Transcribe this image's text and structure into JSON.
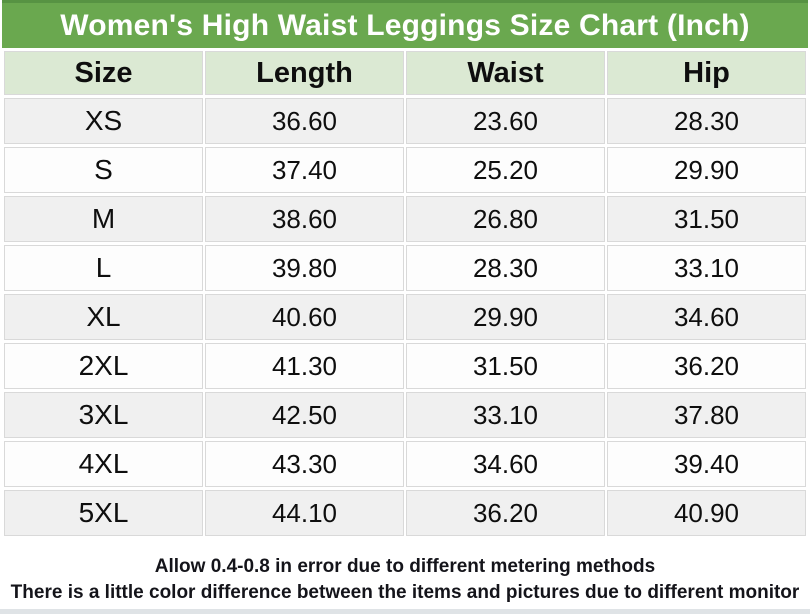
{
  "page": {
    "title": "Women's High Waist Leggings Size Chart (Inch)"
  },
  "colors": {
    "title_bg": "#6aa84f",
    "title_border": "#579343",
    "title_text": "#ffffff",
    "header_bg": "#dbe9d3",
    "row_alt_bg": "#f0f0f0",
    "row_bg": "#fdfdfd",
    "grid_line": "#d9d9d9",
    "footer_strip": "#dfe3e6"
  },
  "chart_data": {
    "type": "table",
    "title": "Women's High Waist Leggings Size Chart (Inch)",
    "columns": [
      "Size",
      "Length",
      "Waist",
      "Hip"
    ],
    "rows": [
      [
        "XS",
        "36.60",
        "23.60",
        "28.30"
      ],
      [
        "S",
        "37.40",
        "25.20",
        "29.90"
      ],
      [
        "M",
        "38.60",
        "26.80",
        "31.50"
      ],
      [
        "L",
        "39.80",
        "28.30",
        "33.10"
      ],
      [
        "XL",
        "40.60",
        "29.90",
        "34.60"
      ],
      [
        "2XL",
        "41.30",
        "31.50",
        "36.20"
      ],
      [
        "3XL",
        "42.50",
        "33.10",
        "37.80"
      ],
      [
        "4XL",
        "43.30",
        "34.60",
        "39.40"
      ],
      [
        "5XL",
        "44.10",
        "36.20",
        "40.90"
      ]
    ]
  },
  "footer": {
    "line1": "Allow 0.4-0.8 in error due to different metering methods",
    "line2": "There is a little color difference between the items and pictures due to different monitor"
  }
}
